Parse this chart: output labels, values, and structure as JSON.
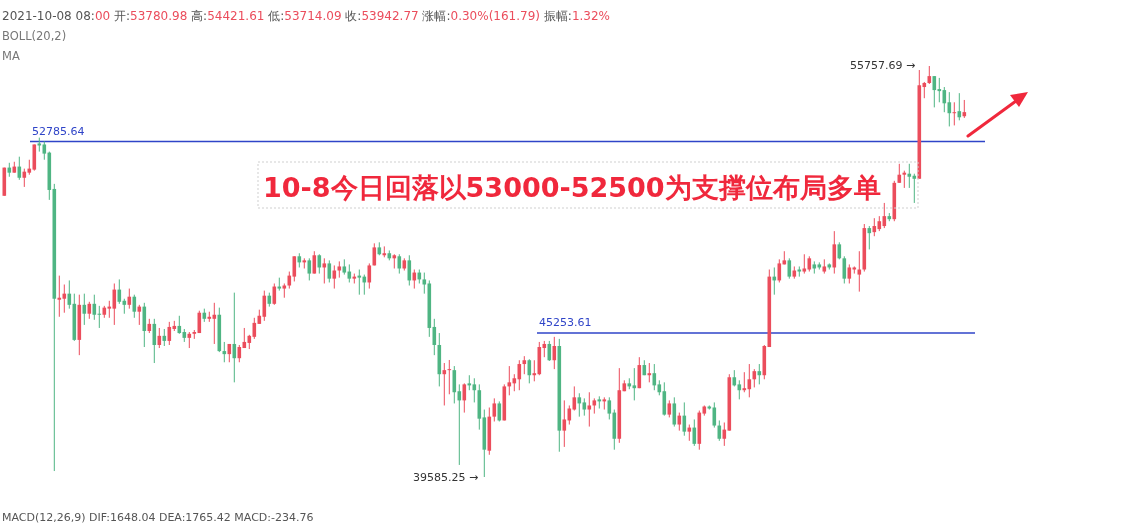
{
  "chart_data": {
    "type": "candlestick",
    "categories": [
      null,
      null,
      null,
      null,
      null,
      null,
      null,
      null,
      null,
      null,
      null,
      null,
      null,
      null,
      null,
      null,
      null,
      null,
      null,
      null,
      null,
      null,
      null,
      null,
      null,
      null,
      null,
      null,
      null,
      null,
      null,
      null,
      null,
      null,
      null,
      null,
      null,
      null,
      null,
      null,
      null,
      null,
      null,
      null,
      null,
      null,
      null,
      null,
      null,
      null,
      null,
      null,
      null,
      null,
      null,
      null,
      null,
      null,
      null,
      null,
      null,
      null,
      null,
      null,
      null,
      null,
      null,
      null,
      null,
      null,
      null,
      null,
      null,
      null,
      null,
      null,
      null,
      null,
      null,
      null,
      null,
      null,
      null,
      null,
      null,
      null,
      null,
      null,
      null,
      null,
      null,
      null,
      null,
      null,
      null,
      null,
      null,
      null,
      null,
      null,
      null,
      null,
      null,
      null,
      null,
      null,
      null,
      null,
      null,
      null,
      null,
      null,
      null,
      null,
      null,
      null,
      null,
      null,
      null,
      null,
      null,
      null,
      null,
      null,
      null,
      null,
      null,
      null,
      null,
      null,
      null,
      null,
      null,
      null,
      null,
      null,
      null,
      null,
      null,
      null,
      null,
      null,
      null,
      null,
      null,
      null,
      null,
      null,
      null,
      null,
      null,
      null,
      null,
      null,
      null,
      null,
      null,
      null,
      null,
      null,
      null,
      null,
      null,
      null,
      null,
      null,
      null,
      null,
      null,
      null,
      null,
      null,
      null,
      null,
      null,
      null,
      null,
      null,
      null,
      null,
      null,
      null,
      null,
      null,
      null,
      null,
      null,
      null,
      null,
      null,
      null,
      null,
      null
    ],
    "ohlc": [
      [
        50650,
        51760,
        50650,
        51760
      ],
      [
        51760,
        51950,
        51400,
        51560
      ],
      [
        51560,
        51990,
        51560,
        51800
      ],
      [
        51800,
        52190,
        51280,
        51360
      ],
      [
        51360,
        51720,
        51000,
        51600
      ],
      [
        51560,
        52070,
        51480,
        51720
      ],
      [
        51680,
        52670,
        51640,
        52670
      ],
      [
        52710,
        52940,
        52390,
        52630
      ],
      [
        52670,
        52790,
        52070,
        52310
      ],
      [
        52350,
        52390,
        50490,
        50880
      ],
      [
        50920,
        51120,
        39820,
        46600
      ],
      [
        46560,
        47510,
        45890,
        46640
      ],
      [
        46600,
        47160,
        46050,
        46800
      ],
      [
        46800,
        47320,
        46210,
        46360
      ],
      [
        46400,
        46800,
        44940,
        44980
      ],
      [
        44980,
        46760,
        44380,
        46360
      ],
      [
        46360,
        46800,
        45570,
        46010
      ],
      [
        46010,
        46480,
        45810,
        46400
      ],
      [
        46400,
        46760,
        45770,
        45970
      ],
      [
        46010,
        46320,
        45450,
        45970
      ],
      [
        45970,
        46320,
        45850,
        46250
      ],
      [
        46210,
        46520,
        45850,
        46290
      ],
      [
        46210,
        47200,
        45570,
        46960
      ],
      [
        46960,
        47360,
        46400,
        46480
      ],
      [
        46520,
        46600,
        46010,
        46360
      ],
      [
        46360,
        47000,
        46210,
        46680
      ],
      [
        46680,
        46760,
        45850,
        46090
      ],
      [
        46090,
        46360,
        45570,
        46290
      ],
      [
        46290,
        46440,
        44700,
        45330
      ],
      [
        45330,
        45810,
        45250,
        45610
      ],
      [
        45610,
        45810,
        44070,
        44780
      ],
      [
        44780,
        45450,
        44660,
        45140
      ],
      [
        45140,
        45410,
        44740,
        44940
      ],
      [
        44940,
        45690,
        44780,
        45490
      ],
      [
        45410,
        45730,
        45330,
        45530
      ],
      [
        45530,
        45930,
        45220,
        45250
      ],
      [
        45290,
        45410,
        44900,
        45060
      ],
      [
        45060,
        45290,
        44660,
        45220
      ],
      [
        45220,
        45370,
        45020,
        45290
      ],
      [
        45250,
        46130,
        45250,
        46050
      ],
      [
        46050,
        46210,
        45690,
        45810
      ],
      [
        45810,
        46090,
        45690,
        45890
      ],
      [
        45810,
        46440,
        44820,
        45970
      ],
      [
        45970,
        46250,
        44500,
        44540
      ],
      [
        44540,
        44900,
        44100,
        44420
      ],
      [
        44420,
        44820,
        44100,
        44820
      ],
      [
        44820,
        46840,
        43310,
        44260
      ],
      [
        44260,
        44780,
        44100,
        44700
      ],
      [
        44660,
        45450,
        44660,
        44900
      ],
      [
        44860,
        45180,
        44620,
        45140
      ],
      [
        45100,
        45850,
        45020,
        45650
      ],
      [
        45610,
        46170,
        45610,
        45930
      ],
      [
        45890,
        46920,
        45730,
        46720
      ],
      [
        46720,
        46840,
        46290,
        46400
      ],
      [
        46400,
        47200,
        46360,
        47080
      ],
      [
        47080,
        47430,
        46920,
        47000
      ],
      [
        47000,
        47200,
        46640,
        47120
      ],
      [
        47120,
        47670,
        47000,
        47510
      ],
      [
        47470,
        48270,
        47280,
        48270
      ],
      [
        48270,
        48390,
        47830,
        48030
      ],
      [
        48030,
        48190,
        47790,
        48110
      ],
      [
        48110,
        48190,
        47320,
        47590
      ],
      [
        47590,
        48470,
        47590,
        48310
      ],
      [
        48310,
        48350,
        47590,
        47830
      ],
      [
        47830,
        48190,
        47200,
        47990
      ],
      [
        47990,
        48110,
        47240,
        47390
      ],
      [
        47390,
        47910,
        47000,
        47710
      ],
      [
        47710,
        48070,
        47430,
        47870
      ],
      [
        47870,
        48150,
        47550,
        47630
      ],
      [
        47670,
        47950,
        47240,
        47390
      ],
      [
        47390,
        47590,
        47200,
        47470
      ],
      [
        47510,
        47750,
        46760,
        47430
      ],
      [
        47470,
        47550,
        46760,
        47240
      ],
      [
        47240,
        47990,
        47000,
        47910
      ],
      [
        47910,
        48780,
        47910,
        48620
      ],
      [
        48620,
        48820,
        48310,
        48350
      ],
      [
        48310,
        48660,
        48230,
        48390
      ],
      [
        48390,
        48500,
        48110,
        48190
      ],
      [
        48190,
        48350,
        47790,
        48310
      ],
      [
        48270,
        48350,
        47590,
        47790
      ],
      [
        47790,
        48190,
        47710,
        48110
      ],
      [
        48110,
        48310,
        47120,
        47320
      ],
      [
        47320,
        47750,
        47000,
        47630
      ],
      [
        47630,
        47750,
        47200,
        47360
      ],
      [
        47360,
        47630,
        46800,
        47160
      ],
      [
        47200,
        47320,
        45100,
        45450
      ],
      [
        45490,
        45810,
        44380,
        44780
      ],
      [
        44780,
        45250,
        43150,
        43630
      ],
      [
        43630,
        44070,
        42400,
        43790
      ],
      [
        43790,
        44190,
        42840,
        43830
      ],
      [
        43790,
        43950,
        42480,
        42920
      ],
      [
        42960,
        43230,
        40060,
        42600
      ],
      [
        42600,
        43270,
        42120,
        43230
      ],
      [
        43270,
        43590,
        43000,
        43190
      ],
      [
        43230,
        43470,
        42520,
        43000
      ],
      [
        43000,
        43230,
        41450,
        41880
      ],
      [
        41930,
        42240,
        39585.25,
        40660
      ],
      [
        40620,
        42320,
        40460,
        41960
      ],
      [
        41960,
        42680,
        41770,
        42480
      ],
      [
        42480,
        42560,
        41770,
        41810
      ],
      [
        41810,
        43230,
        41810,
        43150
      ],
      [
        43150,
        43950,
        42800,
        43310
      ],
      [
        43270,
        43630,
        42960,
        43470
      ],
      [
        43430,
        44180,
        43000,
        44030
      ],
      [
        44030,
        44340,
        43630,
        44180
      ],
      [
        44180,
        44220,
        43270,
        43590
      ],
      [
        43590,
        44180,
        43350,
        43670
      ],
      [
        43630,
        44900,
        43590,
        44700
      ],
      [
        44660,
        44940,
        44300,
        44820
      ],
      [
        44820,
        44940,
        44150,
        44180
      ],
      [
        44180,
        45100,
        43830,
        44740
      ],
      [
        44740,
        45020,
        40580,
        41410
      ],
      [
        41410,
        42600,
        40770,
        41850
      ],
      [
        41810,
        42400,
        41650,
        42280
      ],
      [
        42240,
        43150,
        42200,
        42720
      ],
      [
        42720,
        42880,
        41960,
        42480
      ],
      [
        42520,
        42680,
        42000,
        42240
      ],
      [
        42240,
        42920,
        41570,
        42400
      ],
      [
        42400,
        42680,
        42080,
        42600
      ],
      [
        42640,
        42760,
        42280,
        42560
      ],
      [
        42560,
        42720,
        42240,
        42640
      ],
      [
        42600,
        42720,
        41850,
        42080
      ],
      [
        42120,
        42240,
        40660,
        41090
      ],
      [
        41090,
        43870,
        40930,
        43000
      ],
      [
        42960,
        43390,
        42960,
        43270
      ],
      [
        43270,
        43470,
        43040,
        43150
      ],
      [
        43190,
        43870,
        42600,
        43080
      ],
      [
        43080,
        44300,
        43080,
        43990
      ],
      [
        43990,
        44180,
        43590,
        43590
      ],
      [
        43590,
        44070,
        43310,
        43670
      ],
      [
        43670,
        44030,
        43000,
        43190
      ],
      [
        43230,
        43390,
        42800,
        42920
      ],
      [
        42960,
        43310,
        42000,
        42040
      ],
      [
        42040,
        42600,
        41930,
        42480
      ],
      [
        42480,
        42720,
        41570,
        41650
      ],
      [
        41650,
        42120,
        41410,
        42000
      ],
      [
        42000,
        42520,
        41210,
        41370
      ],
      [
        41370,
        41650,
        41010,
        41530
      ],
      [
        41530,
        41850,
        40810,
        40890
      ],
      [
        40890,
        42200,
        40660,
        42120
      ],
      [
        42080,
        42400,
        42000,
        42360
      ],
      [
        42360,
        42400,
        42240,
        42280
      ],
      [
        42320,
        42520,
        41530,
        41610
      ],
      [
        41610,
        41810,
        41010,
        41090
      ],
      [
        41090,
        41730,
        40810,
        41450
      ],
      [
        41410,
        43630,
        41410,
        43510
      ],
      [
        43510,
        43790,
        43150,
        43190
      ],
      [
        43230,
        43390,
        42640,
        43000
      ],
      [
        43000,
        43710,
        42920,
        43080
      ],
      [
        43040,
        44030,
        42720,
        43430
      ],
      [
        43430,
        43830,
        43110,
        43750
      ],
      [
        43750,
        44030,
        43230,
        43590
      ],
      [
        43590,
        44780,
        43430,
        44740
      ],
      [
        44700,
        47750,
        44700,
        47470
      ],
      [
        47470,
        47830,
        46760,
        47320
      ],
      [
        47320,
        48150,
        47240,
        47990
      ],
      [
        47950,
        48470,
        47950,
        48110
      ],
      [
        48110,
        48190,
        47390,
        47470
      ],
      [
        47470,
        47870,
        47390,
        47710
      ],
      [
        47750,
        47870,
        47470,
        47670
      ],
      [
        47670,
        48350,
        47590,
        47790
      ],
      [
        47750,
        48270,
        47670,
        48190
      ],
      [
        47950,
        48070,
        47590,
        47790
      ],
      [
        47950,
        48030,
        47750,
        47830
      ],
      [
        47670,
        48150,
        47590,
        47870
      ],
      [
        47950,
        47990,
        47750,
        47830
      ],
      [
        47830,
        49260,
        47590,
        48740
      ],
      [
        48740,
        48820,
        48150,
        48190
      ],
      [
        48190,
        48270,
        47200,
        47390
      ],
      [
        47390,
        47950,
        47200,
        47830
      ],
      [
        47750,
        47870,
        47590,
        47830
      ],
      [
        47550,
        48470,
        46880,
        47750
      ],
      [
        47750,
        49540,
        47670,
        49380
      ],
      [
        49380,
        49460,
        48540,
        49180
      ],
      [
        49220,
        49770,
        49060,
        49460
      ],
      [
        49340,
        49850,
        49260,
        49650
      ],
      [
        49460,
        50370,
        49380,
        49850
      ],
      [
        49850,
        49970,
        49650,
        49730
      ],
      [
        49730,
        51240,
        49650,
        51160
      ],
      [
        51160,
        51910,
        51160,
        51480
      ],
      [
        51480,
        51640,
        50960,
        51560
      ],
      [
        51520,
        51910,
        50960,
        51400
      ],
      [
        51440,
        51520,
        50370,
        51320
      ],
      [
        51320,
        55600,
        51320,
        55000
      ],
      [
        54930,
        55130,
        54490,
        55090
      ],
      [
        55090,
        55757.69,
        55050,
        55360
      ],
      [
        55360,
        55360,
        54130,
        54810
      ],
      [
        54850,
        55290,
        54330,
        54770
      ],
      [
        54810,
        54930,
        53940,
        54290
      ],
      [
        54330,
        54730,
        53380,
        53900
      ],
      [
        53900,
        54330,
        53420,
        53940
      ],
      [
        53980,
        54690,
        53620,
        53740
      ],
      [
        53780.98,
        54421.61,
        53714.09,
        53942.77
      ]
    ],
    "ref_lines": [
      {
        "axis": "y",
        "value": 52785.64,
        "label": "52785.64",
        "color": "#2f44c8"
      },
      {
        "axis": "y",
        "value": 45253.61,
        "label": "45253.61",
        "color": "#2f44c8"
      }
    ],
    "annotations": [
      "2021-10-08 08:00 开:53780.98 高:54421.61 低:53714.09 收:53942.77 涨幅:0.30%(161.79) 振幅:1.32%",
      "BOLL(20,2)",
      "MA",
      "10-8今日回落以53000-52500为支撑位布局多单",
      "55757.69 →",
      "39585.25 →",
      "MACD(12,26,9)  DIF:1648.04  DEA:1765.42  MACD:-234.76"
    ]
  }
}
